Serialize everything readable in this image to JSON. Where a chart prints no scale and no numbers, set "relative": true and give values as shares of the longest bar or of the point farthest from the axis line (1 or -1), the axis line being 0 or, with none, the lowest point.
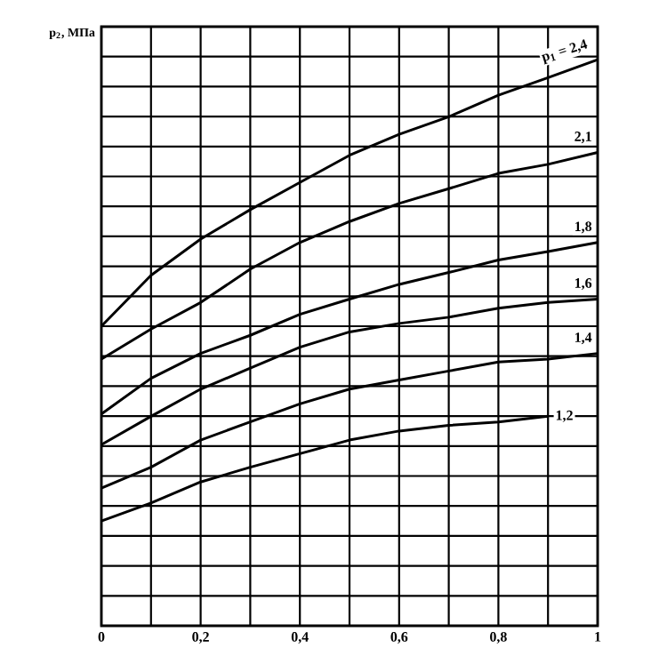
{
  "chart_data": {
    "type": "line",
    "relative": true,
    "ylabel": "p$_{2}$, МПа",
    "x": [
      0,
      0.1,
      0.2,
      0.3,
      0.4,
      0.5,
      0.6,
      0.7,
      0.8,
      0.9,
      1
    ],
    "xlim": [
      0,
      1
    ],
    "xticks": [
      0,
      {
        "value": 0.1,
        "label": null
      },
      {
        "value": 0.2,
        "label": "0,2"
      },
      {
        "value": 0.3,
        "label": null
      },
      {
        "value": 0.4,
        "label": "0,4"
      },
      {
        "value": 0.5,
        "label": null
      },
      {
        "value": 0.6,
        "label": "0,6"
      },
      {
        "value": 0.7,
        "label": null
      },
      {
        "value": 0.8,
        "label": "0,8"
      },
      {
        "value": 0.9,
        "label": null
      },
      1
    ],
    "grid": true,
    "marker": "none",
    "line_style": "solid",
    "series": [
      {
        "name": "p$_{1}$ = 2,4",
        "color": "#000000",
        "values": [
          0.529,
          0.619,
          0.683,
          0.735,
          0.783,
          0.831,
          0.868,
          0.899,
          0.937,
          0.968,
          1
        ]
      },
      {
        "name": "2,1",
        "color": "#000000",
        "values": [
          0.471,
          0.524,
          0.571,
          0.63,
          0.677,
          0.714,
          0.746,
          0.772,
          0.799,
          0.815,
          0.836
        ]
      },
      {
        "name": "1,8",
        "color": "#000000",
        "values": [
          0.374,
          0.437,
          0.481,
          0.513,
          0.55,
          0.577,
          0.603,
          0.624,
          0.646,
          0.661,
          0.677
        ]
      },
      {
        "name": "1,6",
        "color": "#000000",
        "values": [
          0.32,
          0.37,
          0.418,
          0.455,
          0.492,
          0.519,
          0.534,
          0.545,
          0.561,
          0.571,
          0.577
        ]
      },
      {
        "name": "1,4",
        "color": "#000000",
        "values": [
          0.243,
          0.28,
          0.328,
          0.36,
          0.392,
          0.418,
          0.434,
          0.45,
          0.466,
          0.471,
          0.481
        ]
      },
      {
        "name": "1,2",
        "color": "#000000",
        "values": [
          0.185,
          0.217,
          0.254,
          0.28,
          0.304,
          0.328,
          0.344,
          0.354,
          0.36,
          0.37,
          null
        ]
      }
    ]
  }
}
